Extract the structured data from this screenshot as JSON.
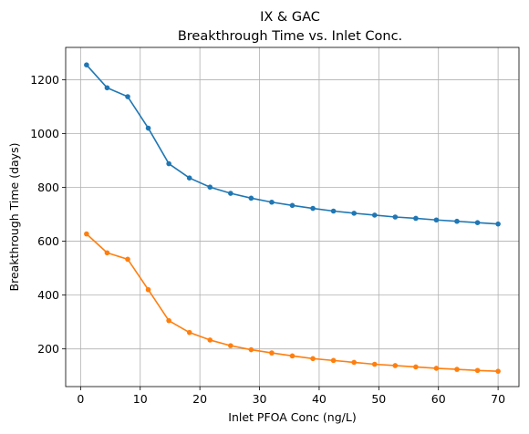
{
  "chart_data": {
    "type": "line",
    "title": "IX & GAC",
    "subtitle": "Breakthrough Time vs. Inlet Conc.",
    "xlabel": "Inlet PFOA Conc (ng/L)",
    "ylabel": "Breakthrough Time (days)",
    "xlim": [
      -2.5,
      73.5
    ],
    "ylim": [
      60,
      1320
    ],
    "xticks": [
      0,
      10,
      20,
      30,
      40,
      50,
      60,
      70
    ],
    "yticks": [
      200,
      400,
      600,
      800,
      1000,
      1200
    ],
    "grid": true,
    "x": [
      1.0,
      4.45,
      7.9,
      11.35,
      14.8,
      18.25,
      21.7,
      25.15,
      28.6,
      32.05,
      35.5,
      38.95,
      42.4,
      45.85,
      49.3,
      52.75,
      56.2,
      59.65,
      63.1,
      66.55,
      70.0
    ],
    "series": [
      {
        "color": "#1f77b4",
        "values": [
          1255,
          1170,
          1137,
          1020,
          888,
          835,
          801,
          778,
          760,
          745,
          733,
          722,
          712,
          704,
          697,
          690,
          685,
          679,
          674,
          669,
          664
        ]
      },
      {
        "color": "#ff7f0e",
        "values": [
          627,
          557,
          533,
          420,
          305,
          261,
          233,
          212,
          197,
          185,
          174,
          164,
          157,
          150,
          143,
          138,
          133,
          128,
          124,
          120,
          117
        ]
      }
    ]
  }
}
